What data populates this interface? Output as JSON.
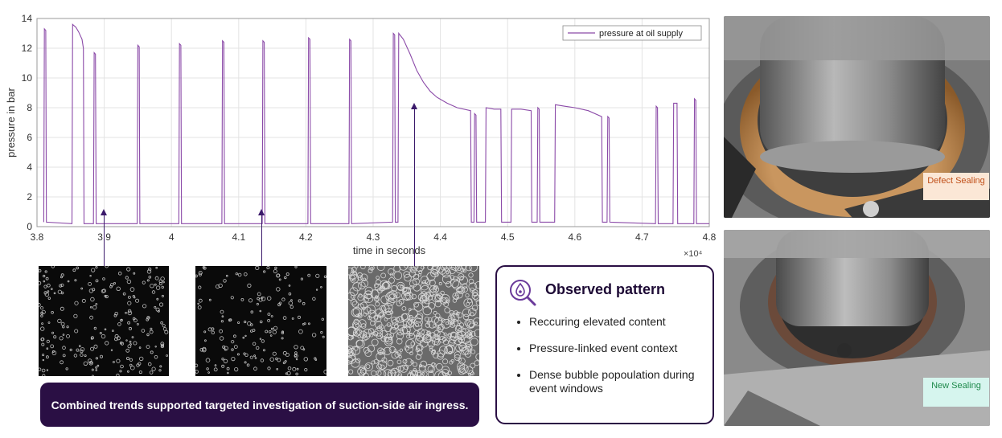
{
  "chart_data": {
    "type": "line",
    "title": "",
    "xlabel": "time in seconds",
    "ylabel": "pressure in bar",
    "x_multiplier": "×10⁴",
    "xlim": [
      3.8,
      4.8
    ],
    "ylim": [
      0,
      14
    ],
    "xticks": [
      "3.8",
      "3.9",
      "4",
      "4.1",
      "4.2",
      "4.3",
      "4.4",
      "4.5",
      "4.6",
      "4.7",
      "4.8"
    ],
    "yticks": [
      "0",
      "2",
      "4",
      "6",
      "8",
      "10",
      "12",
      "14"
    ],
    "grid": true,
    "legend_position": "top-right",
    "series": [
      {
        "name": "pressure at oil supply",
        "color": "#8b4aa8",
        "points": [
          [
            3.81,
            0.3
          ],
          [
            3.811,
            13.3
          ],
          [
            3.813,
            13.2
          ],
          [
            3.814,
            0.3
          ],
          [
            3.852,
            0.2
          ],
          [
            3.853,
            13.6
          ],
          [
            3.858,
            13.4
          ],
          [
            3.862,
            13.1
          ],
          [
            3.867,
            12.6
          ],
          [
            3.869,
            12.0
          ],
          [
            3.87,
            0.2
          ],
          [
            3.884,
            0.2
          ],
          [
            3.885,
            11.7
          ],
          [
            3.887,
            11.6
          ],
          [
            3.888,
            0.2
          ],
          [
            3.949,
            0.2
          ],
          [
            3.95,
            12.2
          ],
          [
            3.952,
            12.1
          ],
          [
            3.953,
            0.2
          ],
          [
            4.011,
            0.2
          ],
          [
            4.012,
            12.3
          ],
          [
            4.014,
            12.2
          ],
          [
            4.015,
            0.2
          ],
          [
            4.075,
            0.2
          ],
          [
            4.076,
            12.5
          ],
          [
            4.078,
            12.4
          ],
          [
            4.079,
            0.2
          ],
          [
            4.135,
            0.2
          ],
          [
            4.136,
            12.5
          ],
          [
            4.138,
            12.4
          ],
          [
            4.139,
            0.2
          ],
          [
            4.203,
            0.2
          ],
          [
            4.204,
            12.7
          ],
          [
            4.206,
            12.6
          ],
          [
            4.207,
            0.2
          ],
          [
            4.264,
            0.2
          ],
          [
            4.265,
            12.6
          ],
          [
            4.267,
            12.5
          ],
          [
            4.268,
            0.2
          ],
          [
            4.329,
            0.3
          ],
          [
            4.33,
            13.0
          ],
          [
            4.332,
            12.9
          ],
          [
            4.333,
            0.3
          ],
          [
            4.337,
            0.3
          ],
          [
            4.338,
            13.0
          ],
          [
            4.345,
            12.6
          ],
          [
            4.355,
            11.6
          ],
          [
            4.365,
            10.5
          ],
          [
            4.375,
            9.7
          ],
          [
            4.385,
            9.1
          ],
          [
            4.395,
            8.7
          ],
          [
            4.41,
            8.3
          ],
          [
            4.425,
            8.0
          ],
          [
            4.445,
            7.8
          ],
          [
            4.446,
            0.3
          ],
          [
            4.45,
            0.3
          ],
          [
            4.451,
            7.6
          ],
          [
            4.453,
            7.5
          ],
          [
            4.454,
            0.3
          ],
          [
            4.467,
            0.3
          ],
          [
            4.468,
            8.0
          ],
          [
            4.48,
            7.9
          ],
          [
            4.49,
            7.9
          ],
          [
            4.491,
            0.3
          ],
          [
            4.505,
            0.3
          ],
          [
            4.506,
            7.9
          ],
          [
            4.52,
            7.9
          ],
          [
            4.535,
            7.8
          ],
          [
            4.536,
            0.3
          ],
          [
            4.544,
            0.3
          ],
          [
            4.545,
            8.0
          ],
          [
            4.547,
            7.9
          ],
          [
            4.548,
            0.3
          ],
          [
            4.57,
            0.3
          ],
          [
            4.571,
            8.2
          ],
          [
            4.585,
            8.1
          ],
          [
            4.6,
            8.0
          ],
          [
            4.62,
            7.8
          ],
          [
            4.64,
            7.4
          ],
          [
            4.641,
            0.3
          ],
          [
            4.648,
            0.3
          ],
          [
            4.649,
            7.4
          ],
          [
            4.651,
            7.3
          ],
          [
            4.652,
            0.3
          ],
          [
            4.72,
            0.2
          ],
          [
            4.721,
            8.1
          ],
          [
            4.723,
            8.0
          ],
          [
            4.724,
            0.2
          ],
          [
            4.746,
            0.2
          ],
          [
            4.747,
            8.3
          ],
          [
            4.752,
            8.3
          ],
          [
            4.753,
            0.2
          ],
          [
            4.777,
            0.2
          ],
          [
            4.778,
            8.6
          ],
          [
            4.78,
            8.5
          ],
          [
            4.781,
            0.2
          ],
          [
            4.8,
            0.2
          ]
        ]
      }
    ]
  },
  "callout": {
    "banner_text": "Combined trends supported targeted investigation of suction-side air ingress.",
    "panel_title": "Observed pattern",
    "panel_icon": "magnifier-droplet-icon",
    "bullets": [
      "Reccuring elevated content",
      "Pressure-linked event context",
      "Dense bubble popoulation during event windows"
    ]
  },
  "photos": {
    "defect_label": "Defect Sealing",
    "new_label": "New Sealing"
  },
  "colors": {
    "accent": "#2a0f44",
    "series": "#8b4aa8",
    "defect_text": "#c0501a",
    "new_text": "#1f8a4c"
  }
}
